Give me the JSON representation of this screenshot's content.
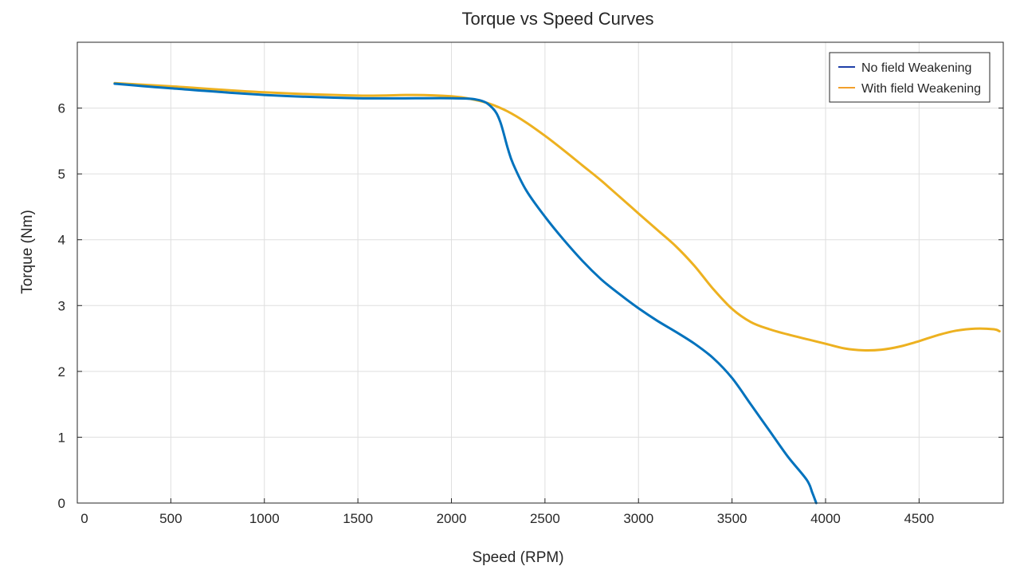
{
  "chart_data": {
    "type": "line",
    "title": "Torque vs Speed Curves",
    "xlabel": "Speed (RPM)",
    "ylabel": "Torque (Nm)",
    "xlim": [
      0,
      4950
    ],
    "ylim": [
      0,
      7
    ],
    "xticks": [
      0,
      500,
      1000,
      1500,
      2000,
      2500,
      3000,
      3500,
      4000,
      4500
    ],
    "yticks": [
      0,
      1,
      2,
      3,
      4,
      5,
      6
    ],
    "grid": true,
    "legend_position": "top-right",
    "series": [
      {
        "name": "No field Weakening",
        "color": "#0072BD",
        "legend_color": "#1f3fa8",
        "x": [
          200,
          500,
          1000,
          1500,
          2000,
          2150,
          2220,
          2260,
          2300,
          2330,
          2400,
          2500,
          2600,
          2700,
          2800,
          2900,
          3000,
          3100,
          3200,
          3300,
          3400,
          3500,
          3600,
          3700,
          3800,
          3900,
          3930,
          3950
        ],
        "y": [
          6.37,
          6.3,
          6.2,
          6.15,
          6.15,
          6.12,
          6.0,
          5.8,
          5.4,
          5.15,
          4.75,
          4.35,
          4.0,
          3.68,
          3.4,
          3.17,
          2.96,
          2.77,
          2.6,
          2.42,
          2.2,
          1.9,
          1.5,
          1.1,
          0.7,
          0.35,
          0.15,
          0.0
        ]
      },
      {
        "name": "With field Weakening",
        "color": "#EDB120",
        "legend_color": "#f2a02c",
        "x": [
          200,
          500,
          1000,
          1500,
          1800,
          2000,
          2100,
          2200,
          2300,
          2400,
          2500,
          2600,
          2700,
          2800,
          2900,
          3000,
          3100,
          3200,
          3300,
          3400,
          3500,
          3600,
          3700,
          3800,
          3900,
          4000,
          4100,
          4200,
          4300,
          4400,
          4500,
          4600,
          4700,
          4800,
          4900,
          4930
        ],
        "y": [
          6.38,
          6.33,
          6.24,
          6.19,
          6.2,
          6.18,
          6.14,
          6.07,
          5.95,
          5.78,
          5.58,
          5.36,
          5.13,
          4.9,
          4.65,
          4.4,
          4.15,
          3.9,
          3.6,
          3.25,
          2.95,
          2.75,
          2.64,
          2.56,
          2.49,
          2.42,
          2.35,
          2.32,
          2.33,
          2.38,
          2.46,
          2.55,
          2.62,
          2.65,
          2.64,
          2.61
        ]
      }
    ]
  }
}
